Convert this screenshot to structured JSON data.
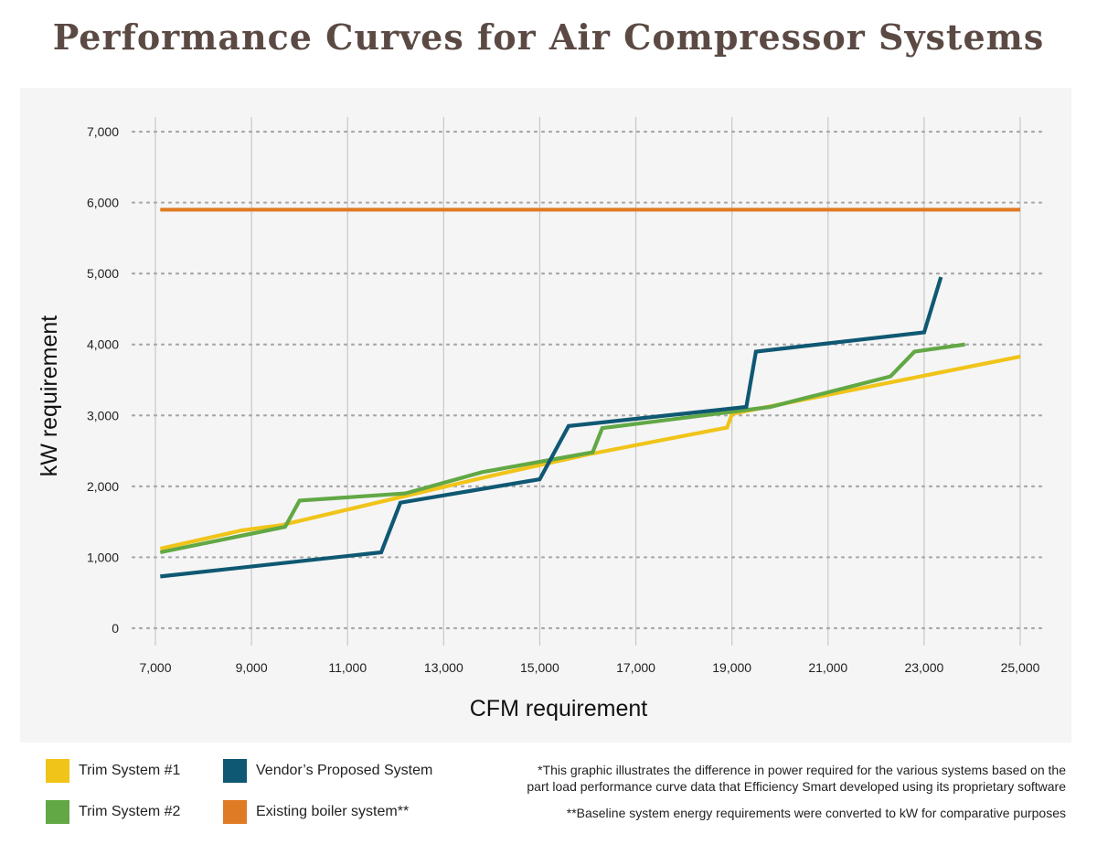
{
  "chart_data": {
    "type": "line",
    "title": "Performance Curves for Air Compressor Systems",
    "xlabel": "CFM requirement",
    "ylabel": "kW requirement",
    "xlim": [
      7000,
      25000
    ],
    "ylim": [
      0,
      7000
    ],
    "x_ticks": [
      7000,
      9000,
      11000,
      13000,
      15000,
      17000,
      19000,
      21000,
      23000,
      25000
    ],
    "x_tick_labels": [
      "7,000",
      "9,000",
      "11,000",
      "13,000",
      "15,000",
      "17,000",
      "19,000",
      "21,000",
      "23,000",
      "25,000"
    ],
    "y_ticks": [
      0,
      1000,
      2000,
      3000,
      4000,
      5000,
      6000,
      7000
    ],
    "y_tick_labels": [
      "0",
      "1,000",
      "2,000",
      "3,000",
      "4,000",
      "5,000",
      "6,000",
      "7,000"
    ],
    "grid": "on",
    "legend_position": "bottom-left",
    "series": [
      {
        "name": "Existing boiler system**",
        "color": "#e07b25",
        "points": [
          [
            7100,
            5900
          ],
          [
            25000,
            5900
          ]
        ]
      },
      {
        "name": "Trim System #1",
        "color": "#f0c419",
        "points": [
          [
            7100,
            1120
          ],
          [
            8800,
            1380
          ],
          [
            9600,
            1450
          ],
          [
            12300,
            1880
          ],
          [
            14000,
            2150
          ],
          [
            16000,
            2450
          ],
          [
            18900,
            2830
          ],
          [
            19000,
            3020
          ],
          [
            25000,
            3830
          ]
        ]
      },
      {
        "name": "Trim System #2",
        "color": "#62a845",
        "points": [
          [
            7100,
            1070
          ],
          [
            9700,
            1430
          ],
          [
            10000,
            1800
          ],
          [
            12200,
            1900
          ],
          [
            13800,
            2200
          ],
          [
            16100,
            2480
          ],
          [
            16300,
            2820
          ],
          [
            19800,
            3120
          ],
          [
            22300,
            3550
          ],
          [
            22800,
            3900
          ],
          [
            23850,
            4000
          ]
        ]
      },
      {
        "name": "Vendor's Proposed System",
        "color": "#0f5873",
        "points": [
          [
            7100,
            730
          ],
          [
            11700,
            1070
          ],
          [
            12100,
            1770
          ],
          [
            15000,
            2100
          ],
          [
            15600,
            2850
          ],
          [
            19300,
            3120
          ],
          [
            19500,
            3900
          ],
          [
            23000,
            4170
          ],
          [
            23350,
            4950
          ]
        ]
      }
    ]
  },
  "legend": {
    "items": [
      {
        "label": "Trim System #1",
        "color": "#f0c419"
      },
      {
        "label": "Vendor’s Proposed System",
        "color": "#0f5873"
      },
      {
        "label": "Trim System #2",
        "color": "#62a845"
      },
      {
        "label": "Existing boiler system**",
        "color": "#e07b25"
      }
    ]
  },
  "notes": {
    "line1": "*This graphic illustrates the difference in power required for the various systems based on the",
    "line2": "part load performance curve data that Efficiency Smart developed using its proprietary software",
    "line3": "**Baseline system energy requirements were converted to kW for comparative purposes"
  }
}
